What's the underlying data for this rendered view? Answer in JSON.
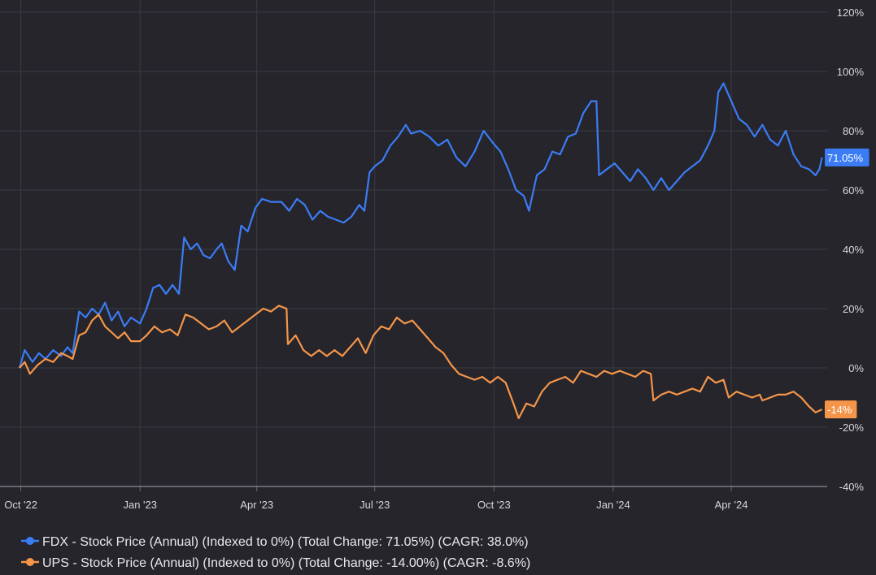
{
  "colors": {
    "background": "#25252b",
    "grid": "#3c3c44",
    "fdx": "#3b7cf5",
    "ups": "#f5954a"
  },
  "chart_data": {
    "type": "line",
    "title": "",
    "xlabel": "",
    "ylabel": "",
    "ylim": [
      -40,
      120
    ],
    "y_ticks": [
      "120%",
      "100%",
      "80%",
      "60%",
      "40%",
      "20%",
      "0%",
      "-20%",
      "-40%"
    ],
    "y_tick_values": [
      120,
      100,
      80,
      60,
      40,
      20,
      0,
      -20,
      -40
    ],
    "x_range": [
      "2022-09-30",
      "2024-06-14"
    ],
    "x_ticks": [
      {
        "label": "Oct '22",
        "date": "2022-10-01"
      },
      {
        "label": "Jan '23",
        "date": "2023-01-01"
      },
      {
        "label": "Apr '23",
        "date": "2023-04-01"
      },
      {
        "label": "Jul '23",
        "date": "2023-07-01"
      },
      {
        "label": "Oct '23",
        "date": "2023-10-01"
      },
      {
        "label": "Jan '24",
        "date": "2024-01-01"
      },
      {
        "label": "Apr '24",
        "date": "2024-04-01"
      }
    ],
    "grid": true,
    "legend_position": "bottom-left",
    "series": [
      {
        "name": "FDX - Stock Price (Annual) (Indexed to 0%) (Total Change: 71.05%) (CAGR: 38.0%)",
        "color": "#3b7cf5",
        "end_label": "71.05%",
        "points": [
          [
            "2022-09-30",
            0
          ],
          [
            "2022-10-04",
            6
          ],
          [
            "2022-10-10",
            2
          ],
          [
            "2022-10-15",
            5
          ],
          [
            "2022-10-20",
            3
          ],
          [
            "2022-10-26",
            6
          ],
          [
            "2022-11-01",
            4
          ],
          [
            "2022-11-06",
            7
          ],
          [
            "2022-11-10",
            5
          ],
          [
            "2022-11-15",
            19
          ],
          [
            "2022-11-20",
            17
          ],
          [
            "2022-11-25",
            20
          ],
          [
            "2022-11-30",
            18
          ],
          [
            "2022-12-05",
            22
          ],
          [
            "2022-12-10",
            16
          ],
          [
            "2022-12-15",
            19
          ],
          [
            "2022-12-20",
            14
          ],
          [
            "2022-12-25",
            17
          ],
          [
            "2023-01-01",
            15
          ],
          [
            "2023-01-06",
            20
          ],
          [
            "2023-01-11",
            27
          ],
          [
            "2023-01-16",
            28
          ],
          [
            "2023-01-21",
            25
          ],
          [
            "2023-01-26",
            28
          ],
          [
            "2023-01-31",
            25
          ],
          [
            "2023-02-04",
            44
          ],
          [
            "2023-02-09",
            40
          ],
          [
            "2023-02-14",
            42
          ],
          [
            "2023-02-19",
            38
          ],
          [
            "2023-02-24",
            37
          ],
          [
            "2023-03-01",
            40
          ],
          [
            "2023-03-05",
            42
          ],
          [
            "2023-03-10",
            36
          ],
          [
            "2023-03-15",
            33
          ],
          [
            "2023-03-20",
            48
          ],
          [
            "2023-03-25",
            46
          ],
          [
            "2023-03-31",
            54
          ],
          [
            "2023-04-05",
            57
          ],
          [
            "2023-04-12",
            56
          ],
          [
            "2023-04-20",
            56
          ],
          [
            "2023-04-26",
            53
          ],
          [
            "2023-05-02",
            57
          ],
          [
            "2023-05-08",
            55
          ],
          [
            "2023-05-14",
            50
          ],
          [
            "2023-05-20",
            53
          ],
          [
            "2023-05-26",
            51
          ],
          [
            "2023-06-01",
            50
          ],
          [
            "2023-06-07",
            49
          ],
          [
            "2023-06-13",
            51
          ],
          [
            "2023-06-19",
            55
          ],
          [
            "2023-06-23",
            53
          ],
          [
            "2023-06-27",
            66
          ],
          [
            "2023-07-01",
            68
          ],
          [
            "2023-07-07",
            70
          ],
          [
            "2023-07-13",
            75
          ],
          [
            "2023-07-19",
            78
          ],
          [
            "2023-07-25",
            82
          ],
          [
            "2023-07-29",
            79
          ],
          [
            "2023-08-05",
            80
          ],
          [
            "2023-08-12",
            78
          ],
          [
            "2023-08-19",
            75
          ],
          [
            "2023-08-26",
            77
          ],
          [
            "2023-09-02",
            71
          ],
          [
            "2023-09-09",
            68
          ],
          [
            "2023-09-16",
            73
          ],
          [
            "2023-09-23",
            80
          ],
          [
            "2023-09-30",
            76
          ],
          [
            "2023-10-06",
            73
          ],
          [
            "2023-10-12",
            67
          ],
          [
            "2023-10-18",
            60
          ],
          [
            "2023-10-24",
            58
          ],
          [
            "2023-10-28",
            53
          ],
          [
            "2023-11-03",
            65
          ],
          [
            "2023-11-09",
            67
          ],
          [
            "2023-11-15",
            73
          ],
          [
            "2023-11-21",
            72
          ],
          [
            "2023-11-27",
            78
          ],
          [
            "2023-12-03",
            79
          ],
          [
            "2023-12-09",
            86
          ],
          [
            "2023-12-15",
            90
          ],
          [
            "2023-12-19",
            90
          ],
          [
            "2023-12-21",
            65
          ],
          [
            "2023-12-27",
            67
          ],
          [
            "2024-01-02",
            69
          ],
          [
            "2024-01-08",
            66
          ],
          [
            "2024-01-14",
            63
          ],
          [
            "2024-01-20",
            67
          ],
          [
            "2024-01-26",
            64
          ],
          [
            "2024-02-01",
            60
          ],
          [
            "2024-02-07",
            64
          ],
          [
            "2024-02-13",
            60
          ],
          [
            "2024-02-19",
            63
          ],
          [
            "2024-02-25",
            66
          ],
          [
            "2024-03-02",
            68
          ],
          [
            "2024-03-08",
            70
          ],
          [
            "2024-03-14",
            75
          ],
          [
            "2024-03-19",
            80
          ],
          [
            "2024-03-22",
            93
          ],
          [
            "2024-03-26",
            96
          ],
          [
            "2024-04-01",
            90
          ],
          [
            "2024-04-07",
            84
          ],
          [
            "2024-04-13",
            82
          ],
          [
            "2024-04-19",
            78
          ],
          [
            "2024-04-25",
            82
          ],
          [
            "2024-05-01",
            77
          ],
          [
            "2024-05-07",
            75
          ],
          [
            "2024-05-13",
            80
          ],
          [
            "2024-05-19",
            72
          ],
          [
            "2024-05-25",
            68
          ],
          [
            "2024-05-31",
            67
          ],
          [
            "2024-06-05",
            65
          ],
          [
            "2024-06-08",
            67
          ],
          [
            "2024-06-10",
            71
          ]
        ]
      },
      {
        "name": "UPS - Stock Price (Annual) (Indexed to 0%) (Total Change: -14.00%) (CAGR: -8.6%)",
        "color": "#f5954a",
        "end_label": "-14%",
        "points": [
          [
            "2022-09-30",
            0
          ],
          [
            "2022-10-04",
            2
          ],
          [
            "2022-10-08",
            -2
          ],
          [
            "2022-10-14",
            1
          ],
          [
            "2022-10-20",
            3
          ],
          [
            "2022-10-26",
            2
          ],
          [
            "2022-11-01",
            5
          ],
          [
            "2022-11-06",
            4
          ],
          [
            "2022-11-10",
            3
          ],
          [
            "2022-11-15",
            11
          ],
          [
            "2022-11-20",
            12
          ],
          [
            "2022-11-25",
            16
          ],
          [
            "2022-11-30",
            18
          ],
          [
            "2022-12-05",
            14
          ],
          [
            "2022-12-10",
            12
          ],
          [
            "2022-12-15",
            10
          ],
          [
            "2022-12-20",
            12
          ],
          [
            "2022-12-25",
            9
          ],
          [
            "2023-01-01",
            9
          ],
          [
            "2023-01-06",
            11
          ],
          [
            "2023-01-12",
            14
          ],
          [
            "2023-01-18",
            12
          ],
          [
            "2023-01-24",
            13
          ],
          [
            "2023-01-30",
            11
          ],
          [
            "2023-02-05",
            18
          ],
          [
            "2023-02-11",
            17
          ],
          [
            "2023-02-17",
            15
          ],
          [
            "2023-02-23",
            13
          ],
          [
            "2023-03-01",
            14
          ],
          [
            "2023-03-07",
            16
          ],
          [
            "2023-03-13",
            12
          ],
          [
            "2023-03-19",
            14
          ],
          [
            "2023-03-25",
            16
          ],
          [
            "2023-03-31",
            18
          ],
          [
            "2023-04-06",
            20
          ],
          [
            "2023-04-12",
            19
          ],
          [
            "2023-04-18",
            21
          ],
          [
            "2023-04-24",
            20
          ],
          [
            "2023-04-25",
            8
          ],
          [
            "2023-05-01",
            11
          ],
          [
            "2023-05-07",
            6
          ],
          [
            "2023-05-13",
            4
          ],
          [
            "2023-05-19",
            6
          ],
          [
            "2023-05-25",
            4
          ],
          [
            "2023-05-31",
            6
          ],
          [
            "2023-06-06",
            4
          ],
          [
            "2023-06-12",
            7
          ],
          [
            "2023-06-18",
            10
          ],
          [
            "2023-06-24",
            5
          ],
          [
            "2023-06-30",
            11
          ],
          [
            "2023-07-06",
            14
          ],
          [
            "2023-07-12",
            13
          ],
          [
            "2023-07-18",
            17
          ],
          [
            "2023-07-24",
            15
          ],
          [
            "2023-07-30",
            16
          ],
          [
            "2023-08-05",
            13
          ],
          [
            "2023-08-11",
            10
          ],
          [
            "2023-08-17",
            7
          ],
          [
            "2023-08-23",
            5
          ],
          [
            "2023-08-29",
            1
          ],
          [
            "2023-09-04",
            -2
          ],
          [
            "2023-09-10",
            -3
          ],
          [
            "2023-09-16",
            -4
          ],
          [
            "2023-09-22",
            -3
          ],
          [
            "2023-09-28",
            -5
          ],
          [
            "2023-10-04",
            -3
          ],
          [
            "2023-10-10",
            -5
          ],
          [
            "2023-10-16",
            -12
          ],
          [
            "2023-10-20",
            -17
          ],
          [
            "2023-10-26",
            -12
          ],
          [
            "2023-11-01",
            -13
          ],
          [
            "2023-11-07",
            -8
          ],
          [
            "2023-11-13",
            -5
          ],
          [
            "2023-11-19",
            -4
          ],
          [
            "2023-11-25",
            -3
          ],
          [
            "2023-12-01",
            -5
          ],
          [
            "2023-12-07",
            -1
          ],
          [
            "2023-12-13",
            -2
          ],
          [
            "2023-12-19",
            -3
          ],
          [
            "2023-12-25",
            -1
          ],
          [
            "2023-12-31",
            -2
          ],
          [
            "2024-01-06",
            -1
          ],
          [
            "2024-01-12",
            -2
          ],
          [
            "2024-01-18",
            -3
          ],
          [
            "2024-01-24",
            -1
          ],
          [
            "2024-01-30",
            -2
          ],
          [
            "2024-02-01",
            -11
          ],
          [
            "2024-02-07",
            -9
          ],
          [
            "2024-02-13",
            -8
          ],
          [
            "2024-02-19",
            -9
          ],
          [
            "2024-02-25",
            -8
          ],
          [
            "2024-03-02",
            -7
          ],
          [
            "2024-03-08",
            -8
          ],
          [
            "2024-03-14",
            -3
          ],
          [
            "2024-03-20",
            -5
          ],
          [
            "2024-03-26",
            -4
          ],
          [
            "2024-03-30",
            -10
          ],
          [
            "2024-04-05",
            -8
          ],
          [
            "2024-04-11",
            -9
          ],
          [
            "2024-04-17",
            -10
          ],
          [
            "2024-04-23",
            -9
          ],
          [
            "2024-04-25",
            -11
          ],
          [
            "2024-05-01",
            -10
          ],
          [
            "2024-05-07",
            -9
          ],
          [
            "2024-05-13",
            -9
          ],
          [
            "2024-05-19",
            -8
          ],
          [
            "2024-05-25",
            -10
          ],
          [
            "2024-05-31",
            -13
          ],
          [
            "2024-06-05",
            -15
          ],
          [
            "2024-06-10",
            -14
          ]
        ]
      }
    ]
  }
}
